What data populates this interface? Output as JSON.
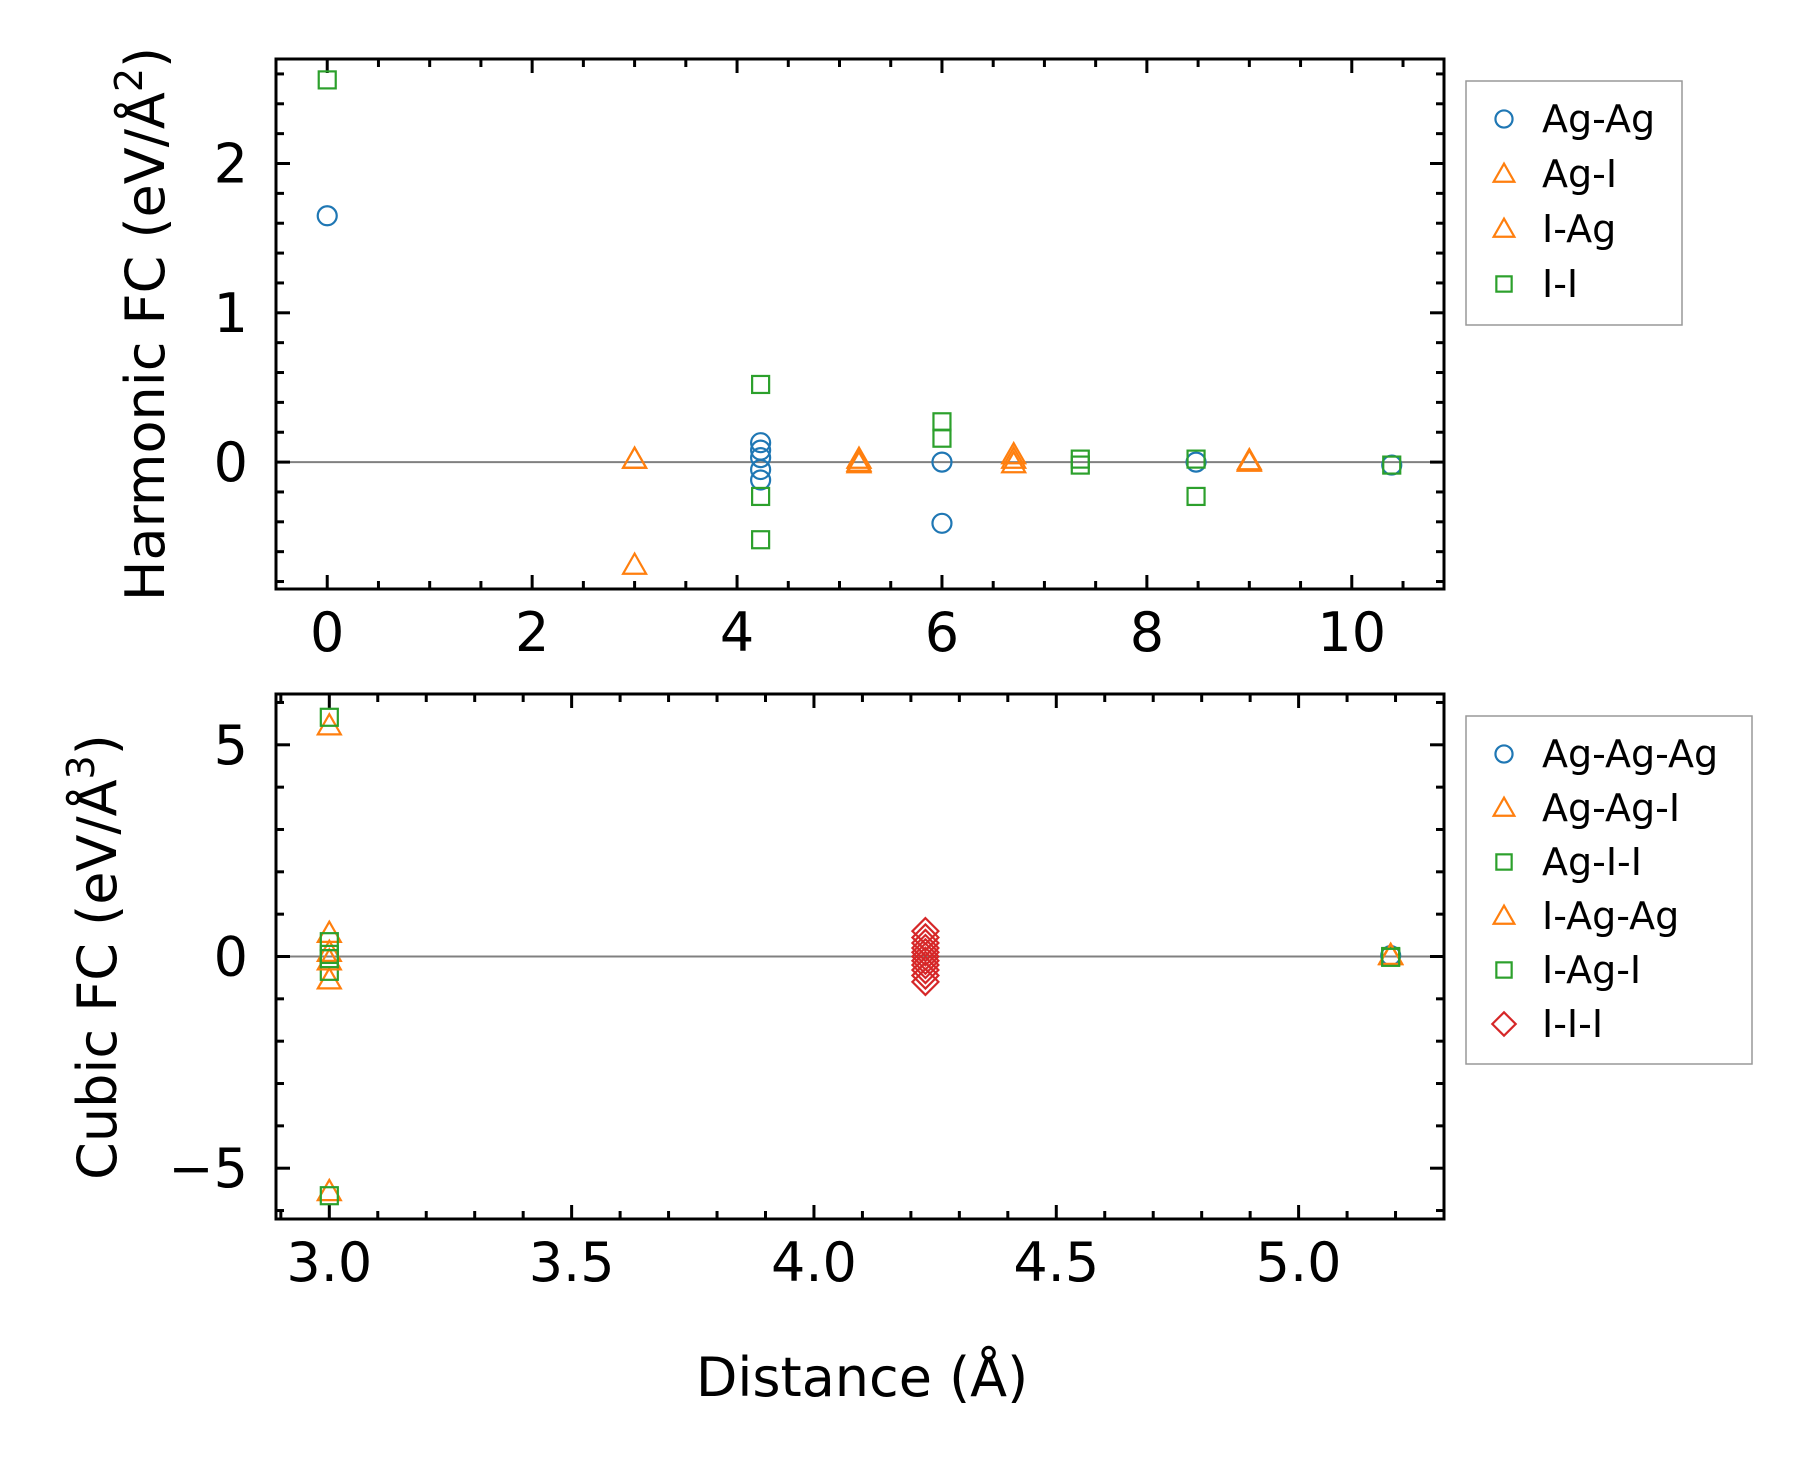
{
  "chart_data": [
    {
      "type": "scatter",
      "id": "harmonic",
      "ylabel": "Harmonic FC (eV/Å²)",
      "ylabel_text": "Harmonic FC (eV/Å",
      "ylabel_sup": "2",
      "ylabel_close": ")",
      "xlim": [
        -0.5,
        10.9
      ],
      "ylim": [
        -0.85,
        2.7
      ],
      "xticks": [
        0,
        2,
        4,
        6,
        8,
        10
      ],
      "xtick_labels": [
        "0",
        "2",
        "4",
        "6",
        "8",
        "10"
      ],
      "xminor_step": 0.5,
      "yticks": [
        0,
        1,
        2
      ],
      "ytick_labels": [
        "0",
        "1",
        "2"
      ],
      "yminor_step": 0.2,
      "zero_line": true,
      "legend_position": "outside-top-right",
      "series": [
        {
          "name": "Ag-Ag",
          "marker": "circle",
          "color": "#1f77b4",
          "points": [
            [
              0,
              1.65
            ],
            [
              4.23,
              0.13
            ],
            [
              4.23,
              0.08
            ],
            [
              4.23,
              0.03
            ],
            [
              4.23,
              -0.05
            ],
            [
              4.23,
              -0.12
            ],
            [
              6.0,
              0.0
            ],
            [
              6.0,
              -0.41
            ],
            [
              8.48,
              0.0
            ],
            [
              10.39,
              -0.02
            ]
          ]
        },
        {
          "name": "Ag-I",
          "marker": "triangle",
          "color": "#ff7f0e",
          "points": [
            [
              3.0,
              0.02
            ],
            [
              3.0,
              -0.69
            ],
            [
              5.19,
              0.02
            ],
            [
              5.19,
              -0.01
            ],
            [
              6.7,
              0.05
            ],
            [
              6.7,
              -0.01
            ],
            [
              9.0,
              0.0
            ]
          ]
        },
        {
          "name": "I-Ag",
          "marker": "triangle",
          "color": "#ff7f0e",
          "points": [
            [
              3.0,
              0.02
            ],
            [
              5.19,
              0.0
            ],
            [
              6.7,
              0.02
            ],
            [
              9.0,
              0.01
            ]
          ]
        },
        {
          "name": "I-I",
          "marker": "square",
          "color": "#2ca02c",
          "points": [
            [
              0,
              2.56
            ],
            [
              4.23,
              0.52
            ],
            [
              4.23,
              -0.23
            ],
            [
              4.23,
              -0.52
            ],
            [
              6.0,
              0.27
            ],
            [
              6.0,
              0.16
            ],
            [
              7.35,
              0.02
            ],
            [
              7.35,
              -0.02
            ],
            [
              8.48,
              0.02
            ],
            [
              8.48,
              -0.23
            ],
            [
              10.39,
              -0.02
            ]
          ]
        }
      ]
    },
    {
      "type": "scatter",
      "id": "cubic",
      "xlabel": "Distance (Å)",
      "ylabel": "Cubic FC (eV/Å³)",
      "ylabel_text": "Cubic FC (eV/Å",
      "ylabel_sup": "3",
      "ylabel_close": ")",
      "xlim": [
        2.89,
        5.3
      ],
      "ylim": [
        -6.2,
        6.2
      ],
      "xticks": [
        3.0,
        3.5,
        4.0,
        4.5,
        5.0
      ],
      "xtick_labels": [
        "3.0",
        "3.5",
        "4.0",
        "4.5",
        "5.0"
      ],
      "xminor_step": 0.1,
      "yticks": [
        -5,
        0,
        5
      ],
      "ytick_labels": [
        "−5",
        "0",
        "5"
      ],
      "yminor_step": 1,
      "zero_line": true,
      "legend_position": "outside-top-right",
      "series": [
        {
          "name": "Ag-Ag-Ag",
          "marker": "circle",
          "color": "#1f77b4",
          "points": [
            [
              5.19,
              0.02
            ]
          ]
        },
        {
          "name": "Ag-Ag-I",
          "marker": "triangle",
          "color": "#ff7f0e",
          "points": [
            [
              3.0,
              5.45
            ],
            [
              3.0,
              0.55
            ],
            [
              3.0,
              -0.55
            ],
            [
              3.0,
              -5.55
            ],
            [
              5.19,
              0.03
            ]
          ]
        },
        {
          "name": "Ag-I-I",
          "marker": "square",
          "color": "#2ca02c",
          "points": [
            [
              3.0,
              5.65
            ],
            [
              3.0,
              0.35
            ],
            [
              3.0,
              -0.35
            ],
            [
              3.0,
              -5.65
            ],
            [
              5.19,
              0.0
            ]
          ]
        },
        {
          "name": "I-Ag-Ag",
          "marker": "triangle",
          "color": "#ff7f0e",
          "points": [
            [
              3.0,
              0.1
            ],
            [
              3.0,
              -0.1
            ],
            [
              5.19,
              0.02
            ]
          ]
        },
        {
          "name": "I-Ag-I",
          "marker": "square",
          "color": "#2ca02c",
          "points": [
            [
              3.0,
              0.05
            ],
            [
              3.0,
              -0.05
            ],
            [
              5.19,
              -0.02
            ]
          ]
        },
        {
          "name": "I-I-I",
          "marker": "diamond",
          "color": "#d62728",
          "points": [
            [
              4.23,
              0.6
            ],
            [
              4.23,
              0.45
            ],
            [
              4.23,
              0.32
            ],
            [
              4.23,
              0.2
            ],
            [
              4.23,
              0.1
            ],
            [
              4.23,
              0.0
            ],
            [
              4.23,
              -0.1
            ],
            [
              4.23,
              -0.2
            ],
            [
              4.23,
              -0.32
            ],
            [
              4.23,
              -0.45
            ],
            [
              4.23,
              -0.6
            ]
          ]
        }
      ]
    }
  ]
}
